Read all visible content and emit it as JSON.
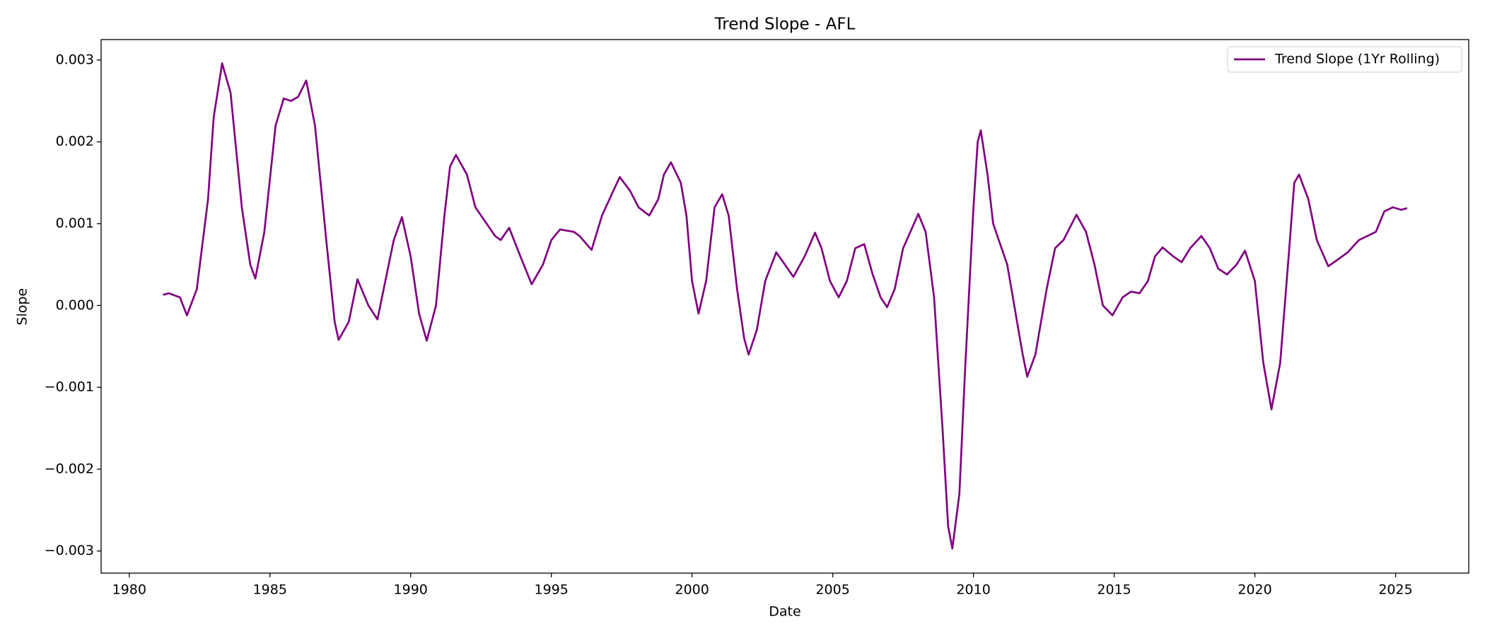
{
  "chart_data": {
    "type": "line",
    "title": "Trend Slope - AFL",
    "xlabel": "Date",
    "ylabel": "Slope",
    "x": [
      1981.2,
      1981.4,
      1981.8,
      1982.05,
      1982.4,
      1982.8,
      1983.0,
      1983.3,
      1983.6,
      1984.0,
      1984.3,
      1984.48,
      1984.8,
      1985.2,
      1985.49,
      1985.75,
      1986.0,
      1986.29,
      1986.6,
      1987.0,
      1987.3,
      1987.44,
      1987.8,
      1988.11,
      1988.5,
      1988.82,
      1989.1,
      1989.4,
      1989.69,
      1990.0,
      1990.3,
      1990.57,
      1990.9,
      1991.2,
      1991.4,
      1991.61,
      1992.0,
      1992.3,
      1992.7,
      1993.0,
      1993.2,
      1993.5,
      1993.9,
      1994.3,
      1994.7,
      1995.0,
      1995.31,
      1995.8,
      1996.0,
      1996.43,
      1996.8,
      1997.2,
      1997.43,
      1997.8,
      1998.1,
      1998.48,
      1998.8,
      1999.0,
      1999.25,
      1999.6,
      1999.8,
      2000.0,
      2000.23,
      2000.5,
      2000.8,
      2001.07,
      2001.3,
      2001.6,
      2001.85,
      2002.01,
      2002.3,
      2002.6,
      2002.99,
      2003.3,
      2003.6,
      2004.0,
      2004.37,
      2004.6,
      2004.9,
      2005.21,
      2005.5,
      2005.8,
      2006.12,
      2006.4,
      2006.7,
      2006.93,
      2007.2,
      2007.5,
      2008.04,
      2008.3,
      2008.6,
      2008.9,
      2009.1,
      2009.25,
      2009.5,
      2009.7,
      2010.0,
      2010.15,
      2010.26,
      2010.5,
      2010.7,
      2011.0,
      2011.2,
      2011.5,
      2011.75,
      2011.91,
      2012.2,
      2012.6,
      2012.9,
      2013.2,
      2013.66,
      2014.0,
      2014.3,
      2014.6,
      2014.94,
      2015.3,
      2015.6,
      2015.9,
      2016.2,
      2016.45,
      2016.72,
      2017.1,
      2017.4,
      2017.7,
      2018.1,
      2018.4,
      2018.7,
      2019.01,
      2019.35,
      2019.65,
      2020.0,
      2020.3,
      2020.59,
      2020.9,
      2021.2,
      2021.4,
      2021.57,
      2021.9,
      2022.2,
      2022.61,
      2022.9,
      2023.3,
      2023.7,
      2024.0,
      2024.3,
      2024.6,
      2024.9,
      2025.2,
      2025.41
    ],
    "series": [
      {
        "name": "Trend Slope (1Yr Rolling)",
        "color": "#800080",
        "values": [
          0.00013,
          0.00015,
          0.0001,
          -0.00012,
          0.0002,
          0.0013,
          0.0023,
          0.00296,
          0.0026,
          0.0012,
          0.0005,
          0.00033,
          0.0009,
          0.0022,
          0.00253,
          0.0025,
          0.00255,
          0.00275,
          0.0022,
          0.0008,
          -0.0002,
          -0.00042,
          -0.0002,
          0.00032,
          0.0,
          -0.00017,
          0.0003,
          0.0008,
          0.00108,
          0.0006,
          -0.0001,
          -0.00043,
          0.0,
          0.0011,
          0.0017,
          0.00184,
          0.0016,
          0.0012,
          0.001,
          0.00085,
          0.0008,
          0.00095,
          0.0006,
          0.00026,
          0.0005,
          0.0008,
          0.00093,
          0.0009,
          0.00085,
          0.00068,
          0.0011,
          0.0014,
          0.00157,
          0.0014,
          0.0012,
          0.0011,
          0.0013,
          0.0016,
          0.00175,
          0.0015,
          0.0011,
          0.0003,
          -0.0001,
          0.0003,
          0.0012,
          0.00136,
          0.0011,
          0.0002,
          -0.0004,
          -0.0006,
          -0.0003,
          0.0003,
          0.00065,
          0.0005,
          0.00035,
          0.0006,
          0.00089,
          0.0007,
          0.0003,
          0.0001,
          0.0003,
          0.0007,
          0.00075,
          0.0004,
          0.0001,
          -2e-05,
          0.0002,
          0.0007,
          0.00112,
          0.0009,
          0.0001,
          -0.0015,
          -0.0027,
          -0.00297,
          -0.0023,
          -0.0008,
          0.0012,
          0.002,
          0.00214,
          0.0016,
          0.001,
          0.0007,
          0.0005,
          -0.0001,
          -0.0006,
          -0.00087,
          -0.0006,
          0.0002,
          0.0007,
          0.0008,
          0.00111,
          0.0009,
          0.0005,
          0.0,
          -0.00012,
          0.0001,
          0.00017,
          0.00015,
          0.0003,
          0.0006,
          0.00071,
          0.0006,
          0.00053,
          0.0007,
          0.00085,
          0.0007,
          0.00045,
          0.00038,
          0.0005,
          0.00067,
          0.0003,
          -0.0007,
          -0.00127,
          -0.0007,
          0.0006,
          0.0015,
          0.0016,
          0.0013,
          0.0008,
          0.00048,
          0.00055,
          0.00065,
          0.0008,
          0.00085,
          0.0009,
          0.00115,
          0.0012,
          0.00117,
          0.00119
        ]
      }
    ],
    "xlim": [
      1979.0,
      2027.6
    ],
    "xticks": [
      1980,
      1985,
      1990,
      1995,
      2000,
      2005,
      2010,
      2015,
      2020,
      2025
    ],
    "ylim": [
      -0.00327,
      0.00325
    ],
    "yticks": [
      {
        "value": -0.003,
        "label": "−0.003"
      },
      {
        "value": -0.002,
        "label": "−0.002"
      },
      {
        "value": -0.001,
        "label": "−0.001"
      },
      {
        "value": 0,
        "label": "0.000"
      },
      0.001,
      0.002,
      0.003
    ],
    "grid": false,
    "legend": "upper right"
  }
}
